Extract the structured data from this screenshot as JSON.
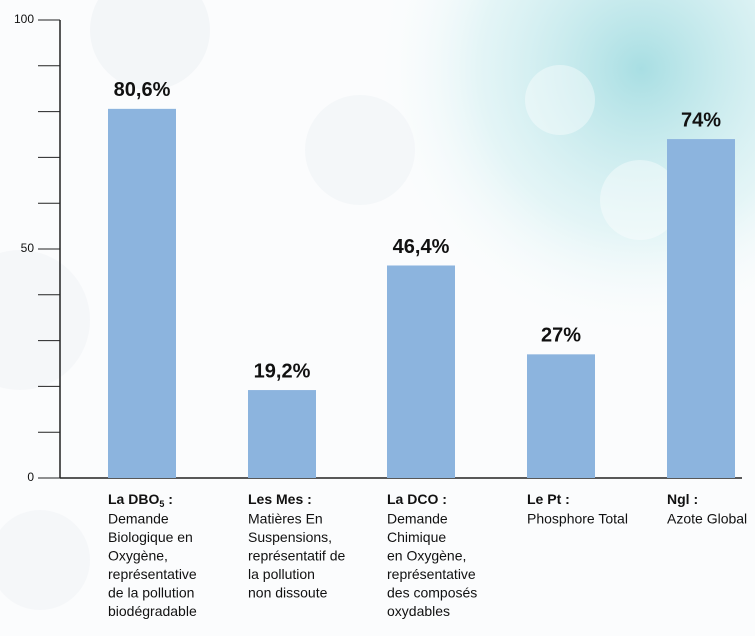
{
  "chart_data": {
    "type": "bar",
    "categories": [
      {
        "title": "La DBO",
        "title_sub": "5",
        "title_end": " :",
        "lines": [
          "Demande",
          "Biologique en",
          "Oxygène,",
          "représentative",
          "de la pollution",
          "biodégradable"
        ]
      },
      {
        "title": "Les Mes :",
        "lines": [
          "Matières En",
          "Suspensions,",
          "représentatif de",
          "la pollution",
          "non dissoute"
        ]
      },
      {
        "title": "La DCO :",
        "lines": [
          "Demande",
          "Chimique",
          "en Oxygène,",
          "représentative",
          "des composés",
          "oxydables"
        ]
      },
      {
        "title": "Le Pt :",
        "lines": [
          "Phosphore Total"
        ]
      },
      {
        "title": "Ngl :",
        "lines": [
          "Azote Global"
        ]
      }
    ],
    "values": [
      80.6,
      19.2,
      46.4,
      27,
      74
    ],
    "value_labels": [
      "80,6%",
      "19,2%",
      "46,4%",
      "27%",
      "74%"
    ],
    "color": "#8cb4de",
    "ylim": [
      0,
      100
    ],
    "yticks": [
      0,
      50,
      100
    ],
    "minor_yticks": [
      10,
      20,
      30,
      40,
      60,
      70,
      80,
      90
    ]
  }
}
